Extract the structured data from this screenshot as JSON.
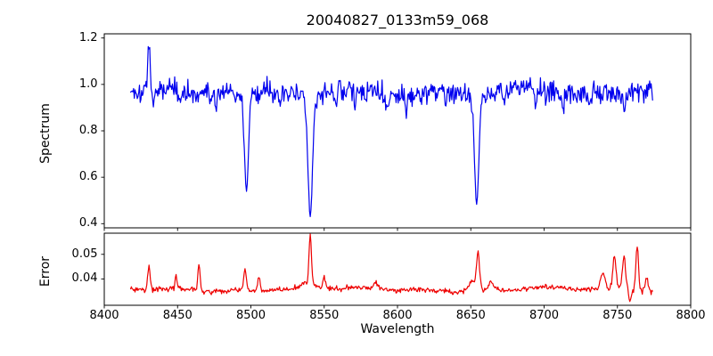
{
  "chart_data": {
    "type": "line",
    "title": "20040827_0133m59_068",
    "xlabel": "Wavelength",
    "grid": false,
    "legend": null,
    "xlim": [
      8400,
      8800
    ],
    "x_ticks": [
      8400,
      8450,
      8500,
      8550,
      8600,
      8650,
      8700,
      8750,
      8800
    ],
    "x_tick_labels": [
      "8400",
      "8450",
      "8500",
      "8550",
      "8600",
      "8650",
      "8700",
      "8750",
      "8800"
    ],
    "x_range_data": [
      8418,
      8774
    ],
    "x_step": 0.5,
    "panels": [
      {
        "name": "spectrum",
        "ylabel": "Spectrum",
        "line_color": "#0000ee",
        "ylim": [
          0.382,
          1.218
        ],
        "y_ticks": [
          0.4,
          0.6,
          0.8,
          1.0,
          1.2
        ],
        "y_tick_labels": [
          "0.4",
          "0.6",
          "0.8",
          "1.0",
          "1.2"
        ],
        "baseline": 0.972,
        "noise_sigma": 0.023,
        "noise_scales_with_value": true,
        "seed": 1337,
        "wobble": [
          {
            "amp": 0.008,
            "period": 130,
            "phase": 0.8
          },
          {
            "amp": 0.006,
            "period": 48,
            "phase": 2.3
          }
        ],
        "features": [
          {
            "center": 8430.5,
            "amp": 0.205,
            "width": 0.8,
            "note": "emission spike to 1.18"
          },
          {
            "center": 8433.5,
            "amp": -0.07,
            "width": 0.7
          },
          {
            "center": 8452,
            "amp": -0.05,
            "width": 0.7
          },
          {
            "center": 8476,
            "amp": -0.06,
            "width": 0.7
          },
          {
            "center": 8497,
            "amp": -0.38,
            "width": 1.3,
            "note": "Ca II absorption, min ~0.58"
          },
          {
            "center": 8497,
            "amp": -0.045,
            "width": 4
          },
          {
            "center": 8520,
            "amp": -0.07,
            "width": 0.8
          },
          {
            "center": 8526,
            "amp": -0.05,
            "width": 0.7
          },
          {
            "center": 8540.5,
            "amp": -0.5,
            "width": 1.5,
            "note": "Ca II absorption, min ~0.42"
          },
          {
            "center": 8540.5,
            "amp": -0.05,
            "width": 6
          },
          {
            "center": 8558,
            "amp": -0.055,
            "width": 0.7
          },
          {
            "center": 8571,
            "amp": -0.06,
            "width": 0.7
          },
          {
            "center": 8593,
            "amp": -0.085,
            "width": 0.8
          },
          {
            "center": 8606,
            "amp": -0.06,
            "width": 0.7
          },
          {
            "center": 8633,
            "amp": -0.055,
            "width": 0.8
          },
          {
            "center": 8654,
            "amp": -0.445,
            "width": 1.4,
            "note": "Ca II absorption, min ~0.48"
          },
          {
            "center": 8654,
            "amp": -0.04,
            "width": 5
          },
          {
            "center": 8673,
            "amp": -0.06,
            "width": 0.8
          },
          {
            "center": 8694,
            "amp": -0.055,
            "width": 0.7
          },
          {
            "center": 8713,
            "amp": -0.07,
            "width": 0.8
          },
          {
            "center": 8731,
            "amp": -0.06,
            "width": 0.7
          },
          {
            "center": 8755,
            "amp": -0.05,
            "width": 0.7
          }
        ]
      },
      {
        "name": "error",
        "ylabel": "Error",
        "line_color": "#ee0000",
        "ylim": [
          0.0293,
          0.0586
        ],
        "y_ticks": [
          0.04,
          0.05
        ],
        "y_tick_labels": [
          "0.04",
          "0.05"
        ],
        "baseline": 0.0357,
        "noise_sigma": 0.00055,
        "noise_scales_with_value": false,
        "seed": 77,
        "wobble": [
          {
            "amp": 0.0006,
            "period": 150,
            "phase": 1.2
          },
          {
            "amp": 0.0004,
            "period": 42,
            "phase": 0.4
          }
        ],
        "features": [
          {
            "center": 8430.5,
            "amp": 0.0102,
            "width": 0.8
          },
          {
            "center": 8449,
            "amp": 0.0055,
            "width": 0.7
          },
          {
            "center": 8464.5,
            "amp": 0.0112,
            "width": 0.8
          },
          {
            "center": 8496,
            "amp": 0.008,
            "width": 0.9
          },
          {
            "center": 8505.5,
            "amp": 0.0062,
            "width": 0.8
          },
          {
            "center": 8540,
            "amp": 0.0022,
            "width": 4
          },
          {
            "center": 8540.5,
            "amp": 0.0195,
            "width": 0.8,
            "note": "max error spike ~0.057"
          },
          {
            "center": 8550,
            "amp": 0.0045,
            "width": 0.9
          },
          {
            "center": 8585,
            "amp": 0.0028,
            "width": 1.5
          },
          {
            "center": 8651,
            "amp": 0.004,
            "width": 2.5
          },
          {
            "center": 8655,
            "amp": 0.014,
            "width": 1.0,
            "note": "spike ~0.052"
          },
          {
            "center": 8664,
            "amp": 0.003,
            "width": 1.5
          },
          {
            "center": 8740,
            "amp": 0.0062,
            "width": 1.5
          },
          {
            "center": 8748,
            "amp": 0.013,
            "width": 1.1
          },
          {
            "center": 8754.5,
            "amp": 0.0135,
            "width": 1.1
          },
          {
            "center": 8758.5,
            "amp": -0.004,
            "width": 0.8
          },
          {
            "center": 8763.5,
            "amp": 0.0185,
            "width": 0.9,
            "note": "spike ~0.056"
          },
          {
            "center": 8770,
            "amp": 0.005,
            "width": 1.0
          }
        ]
      }
    ]
  }
}
